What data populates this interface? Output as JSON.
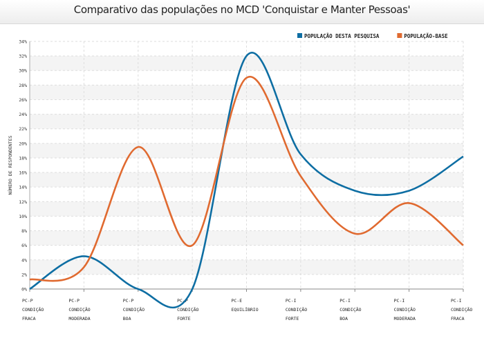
{
  "title": "Comparativo das populações no MCD 'Conquistar e Manter Pessoas'",
  "colors": {
    "series1": "#0e6ea3",
    "series2": "#e06a30",
    "grid": "#dddddd",
    "band": "#f4f4f4"
  },
  "chart_data": {
    "type": "line",
    "title": "Comparativo das populações no MCD 'Conquistar e Manter Pessoas'",
    "ylabel": "NÚMERO DE RESPONDENTES",
    "xlabel": "",
    "ylim": [
      0,
      34
    ],
    "y_ticks": [
      0,
      2,
      4,
      6,
      8,
      10,
      12,
      14,
      16,
      18,
      20,
      22,
      24,
      26,
      28,
      30,
      32,
      34
    ],
    "y_tick_suffix": "%",
    "grid": true,
    "legend_position": "top-right",
    "categories": [
      [
        "PC-P",
        "CONDIÇÃO",
        "FRACA"
      ],
      [
        "PC-P",
        "CONDIÇÃO",
        "MODERADA"
      ],
      [
        "PC-P",
        "CONDIÇÃO",
        "BOA"
      ],
      [
        "PC-P",
        "CONDIÇÃO",
        "FORTE"
      ],
      [
        "PC-E",
        "EQUILÍBRIO"
      ],
      [
        "PC-I",
        "CONDIÇÃO",
        "FORTE"
      ],
      [
        "PC-I",
        "CONDIÇÃO",
        "BOA"
      ],
      [
        "PC-I",
        "CONDIÇÃO",
        "MODERADA"
      ],
      [
        "PC-I",
        "CONDIÇÃO",
        "FRACA"
      ]
    ],
    "series": [
      {
        "name": "POPULAÇÃO DESTA PESQUISA",
        "values": [
          0,
          4.5,
          0,
          0,
          32,
          18.5,
          13.5,
          13.5,
          18.2
        ]
      },
      {
        "name": "POPULAÇÃO-BASE",
        "values": [
          1.3,
          3,
          19.5,
          6,
          29,
          15.5,
          7.6,
          11.8,
          6
        ]
      }
    ]
  }
}
